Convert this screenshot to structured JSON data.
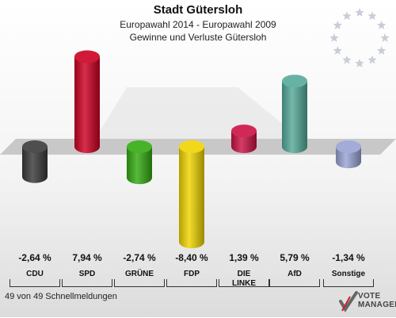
{
  "header": {
    "title": "Stadt Gütersloh",
    "subtitle": "Europawahl 2014 - Europawahl 2009",
    "subtitle2": "Gewinne und Verluste Gütersloh"
  },
  "chart_data": {
    "type": "bar",
    "title": "Stadt Gütersloh",
    "subtitle": "Europawahl 2014 - Europawahl 2009 — Gewinne und Verluste Gütersloh",
    "categories": [
      "CDU",
      "SPD",
      "GRÜNE",
      "FDP",
      "DIE LINKE",
      "AfD",
      "Sonstige"
    ],
    "values": [
      -2.64,
      7.94,
      -2.74,
      -8.4,
      1.39,
      5.79,
      -1.34
    ],
    "value_labels": [
      "-2,64 %",
      "7,94 %",
      "-2,74 %",
      "-8,40 %",
      "1,39 %",
      "5,79 %",
      "-1,34 %"
    ],
    "colors": [
      "#3a3a3a",
      "#cc0022",
      "#33aa11",
      "#f0d400",
      "#cc1144",
      "#55aa99",
      "#99a3d4"
    ],
    "xlabel": "",
    "ylabel": "",
    "grid": false,
    "legend": "none"
  },
  "party_labels": [
    "CDU",
    "SPD",
    "GRÜNE",
    "FDP",
    "DIE\nLINKE",
    "AfD",
    "Sonstige"
  ],
  "footer": {
    "status": "49 von 49 Schnellmeldungen"
  },
  "logo": {
    "line1": "VOTE",
    "line2": "MANAGER",
    "icon": "check-mark-icon"
  },
  "decor": {
    "stars_icon": "eu-stars-icon"
  }
}
